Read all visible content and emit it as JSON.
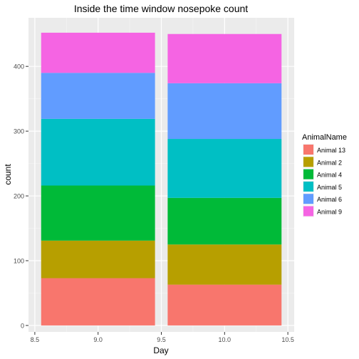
{
  "chart_data": {
    "type": "bar",
    "stacked": true,
    "title": "Inside the time window nosepoke count",
    "xlabel": "Day",
    "ylabel": "count",
    "x_ticks": [
      8.5,
      9.0,
      9.5,
      10.0,
      10.5
    ],
    "x_tick_labels": [
      "8.5",
      "9.0",
      "9.5",
      "10.0",
      "10.5"
    ],
    "y_ticks": [
      0,
      100,
      200,
      300,
      400
    ],
    "xlim": [
      8.45,
      10.55
    ],
    "ylim": [
      -10,
      475
    ],
    "bar_width": 0.9,
    "categories": [
      9,
      10
    ],
    "legend_title": "AnimalName",
    "legend_position": "right",
    "grid": true,
    "series": [
      {
        "name": "Animal 13",
        "color": "#F8766D",
        "values": [
          73,
          63
        ]
      },
      {
        "name": "Animal 2",
        "color": "#B79F00",
        "values": [
          58,
          62
        ]
      },
      {
        "name": "Animal 4",
        "color": "#00BA38",
        "values": [
          85,
          72
        ]
      },
      {
        "name": "Animal 5",
        "color": "#00BFC4",
        "values": [
          103,
          91
        ]
      },
      {
        "name": "Animal 6",
        "color": "#619CFF",
        "values": [
          71,
          86
        ]
      },
      {
        "name": "Animal 9",
        "color": "#F564E3",
        "values": [
          62,
          76
        ]
      }
    ]
  }
}
